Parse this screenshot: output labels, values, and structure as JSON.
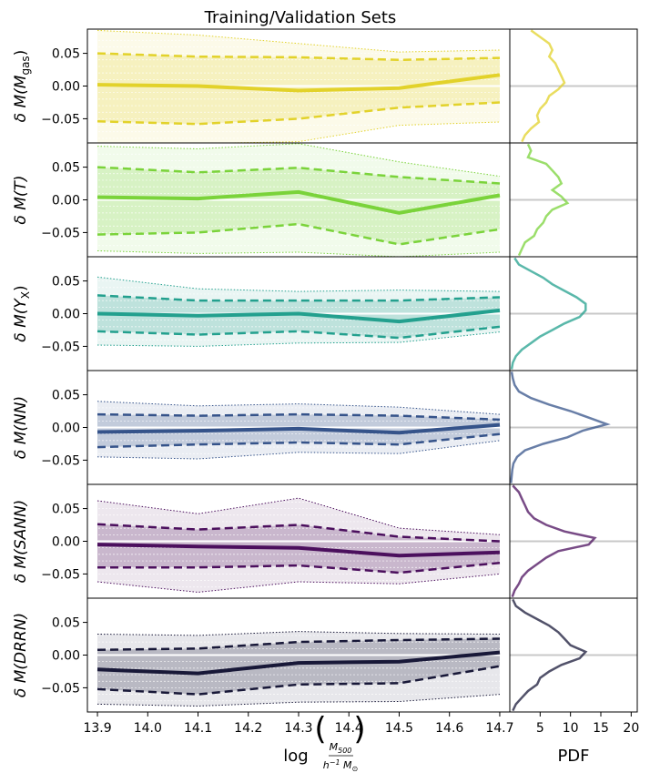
{
  "figure": {
    "title": "Training/Validation Sets",
    "pdf_xlabel": "PDF",
    "xlabel_prefix": "log",
    "xlabel_num": "M",
    "xlabel_num_sub": "500",
    "xlabel_den": "h",
    "xlabel_den_sup": "−1",
    "xlabel_den_m": " M",
    "xlabel_den_sub": "⊙"
  },
  "chart_data": {
    "type": "line",
    "x": [
      13.9,
      14.1,
      14.3,
      14.5,
      14.7
    ],
    "xlim": [
      13.88,
      14.72
    ],
    "ylim": [
      -0.087,
      0.087
    ],
    "x_ticks": [
      "13.9",
      "14.0",
      "14.1",
      "14.2",
      "14.3",
      "14.4",
      "14.5",
      "14.6",
      "14.7"
    ],
    "y_ticks": [
      "0.05",
      "0.00",
      "−0.05"
    ],
    "pdf_ticks": [
      "5",
      "10",
      "15",
      "20"
    ],
    "pdf_xlim": [
      0,
      21
    ],
    "panels": [
      {
        "ylabel": "δ M(M",
        "ylabel_sub": "gas",
        "ylabel_close": ")",
        "color": "#e2d22a",
        "median": [
          0.002,
          0.0,
          -0.007,
          -0.003,
          0.017
        ],
        "q16": [
          -0.054,
          -0.058,
          -0.05,
          -0.033,
          -0.025
        ],
        "q84": [
          0.05,
          0.045,
          0.044,
          0.04,
          0.043
        ],
        "q2": [
          -0.09,
          -0.088,
          -0.085,
          -0.06,
          -0.055
        ],
        "q98": [
          0.085,
          0.078,
          0.065,
          0.052,
          0.055
        ],
        "pdf_y": [
          0.085,
          0.075,
          0.065,
          0.055,
          0.045,
          0.035,
          0.025,
          0.015,
          0.005,
          -0.005,
          -0.015,
          -0.025,
          -0.035,
          -0.045,
          -0.055,
          -0.065,
          -0.075,
          -0.085
        ],
        "pdf": [
          3.5,
          5,
          6.5,
          7,
          6.5,
          7.5,
          8,
          8.5,
          9,
          8,
          6.5,
          6,
          5,
          4.5,
          4.8,
          3.5,
          2.5,
          2
        ]
      },
      {
        "ylabel": "δ M(T)",
        "ylabel_sub": "",
        "ylabel_close": "",
        "color": "#7ad33a",
        "median": [
          0.004,
          0.002,
          0.012,
          -0.02,
          0.007
        ],
        "q16": [
          -0.053,
          -0.05,
          -0.037,
          -0.068,
          -0.045
        ],
        "q84": [
          0.05,
          0.042,
          0.049,
          0.035,
          0.025
        ],
        "q2": [
          -0.078,
          -0.082,
          -0.08,
          -0.087,
          -0.08
        ],
        "q98": [
          0.082,
          0.078,
          0.086,
          0.058,
          0.036
        ],
        "pdf_y": [
          0.085,
          0.075,
          0.065,
          0.055,
          0.045,
          0.035,
          0.025,
          0.015,
          0.005,
          -0.005,
          -0.015,
          -0.025,
          -0.035,
          -0.045,
          -0.055,
          -0.065,
          -0.075,
          -0.085
        ],
        "pdf": [
          3,
          3.5,
          3,
          6,
          7,
          8,
          8.5,
          7,
          8.5,
          9.5,
          7,
          6,
          5.5,
          4.5,
          4,
          2.5,
          2,
          1.5
        ]
      },
      {
        "ylabel": "δ M(Y",
        "ylabel_sub": "X",
        "ylabel_close": ")",
        "color": "#23a08e",
        "median": [
          0.0,
          -0.003,
          0.0,
          -0.012,
          0.005
        ],
        "q16": [
          -0.027,
          -0.032,
          -0.027,
          -0.037,
          -0.02
        ],
        "q84": [
          0.028,
          0.02,
          0.02,
          0.02,
          0.025
        ],
        "q2": [
          -0.048,
          -0.05,
          -0.045,
          -0.044,
          -0.028
        ],
        "q98": [
          0.056,
          0.038,
          0.034,
          0.036,
          0.034
        ],
        "pdf_y": [
          0.085,
          0.075,
          0.065,
          0.055,
          0.045,
          0.035,
          0.025,
          0.015,
          0.005,
          -0.005,
          -0.015,
          -0.025,
          -0.035,
          -0.045,
          -0.055,
          -0.065,
          -0.075,
          -0.085
        ],
        "pdf": [
          0.8,
          1.5,
          3.5,
          5.5,
          7,
          9,
          11,
          12.5,
          12.5,
          11.5,
          9,
          7,
          5,
          3.5,
          2,
          1,
          0.5,
          0.3
        ]
      },
      {
        "ylabel": "δ M(NN)",
        "ylabel_sub": "",
        "ylabel_close": "",
        "color": "#35538a",
        "median": [
          -0.007,
          -0.005,
          -0.002,
          -0.008,
          0.004
        ],
        "q16": [
          -0.03,
          -0.026,
          -0.023,
          -0.026,
          -0.01
        ],
        "q84": [
          0.02,
          0.018,
          0.02,
          0.018,
          0.012
        ],
        "q2": [
          -0.045,
          -0.048,
          -0.038,
          -0.04,
          -0.02
        ],
        "q98": [
          0.04,
          0.033,
          0.036,
          0.031,
          0.02
        ],
        "pdf_y": [
          0.085,
          0.075,
          0.065,
          0.055,
          0.045,
          0.035,
          0.025,
          0.015,
          0.005,
          -0.005,
          -0.015,
          -0.025,
          -0.035,
          -0.045,
          -0.055,
          -0.065,
          -0.075,
          -0.085
        ],
        "pdf": [
          0.3,
          0.5,
          0.8,
          1.5,
          3.5,
          6.5,
          10,
          13,
          16,
          12,
          9.5,
          5.5,
          2.5,
          1.2,
          0.6,
          0.4,
          0.3,
          0.2
        ]
      },
      {
        "ylabel": "δ M(SANN)",
        "ylabel_sub": "",
        "ylabel_close": "",
        "color": "#4b0f5d",
        "median": [
          -0.005,
          -0.008,
          -0.01,
          -0.022,
          -0.017
        ],
        "q16": [
          -0.04,
          -0.04,
          -0.037,
          -0.048,
          -0.033
        ],
        "q84": [
          0.026,
          0.018,
          0.025,
          0.007,
          0.0
        ],
        "q2": [
          -0.062,
          -0.078,
          -0.062,
          -0.065,
          -0.05
        ],
        "q98": [
          0.062,
          0.042,
          0.066,
          0.02,
          0.01
        ],
        "pdf_y": [
          0.085,
          0.075,
          0.065,
          0.055,
          0.045,
          0.035,
          0.025,
          0.015,
          0.005,
          -0.005,
          -0.015,
          -0.025,
          -0.035,
          -0.045,
          -0.055,
          -0.065,
          -0.075,
          -0.085
        ],
        "pdf": [
          0.5,
          1.5,
          2,
          2.5,
          3,
          4,
          6,
          9,
          14,
          13,
          8,
          6,
          4.5,
          3,
          2,
          1.5,
          0.8,
          0.4
        ]
      },
      {
        "ylabel": "δ M(DRRN)",
        "ylabel_sub": "",
        "ylabel_close": "",
        "color": "#181838",
        "median": [
          -0.022,
          -0.028,
          -0.012,
          -0.01,
          0.004
        ],
        "q16": [
          -0.052,
          -0.06,
          -0.045,
          -0.043,
          -0.017
        ],
        "q84": [
          0.008,
          0.01,
          0.02,
          0.023,
          0.025
        ],
        "q2": [
          -0.075,
          -0.078,
          -0.072,
          -0.071,
          -0.06
        ],
        "q98": [
          0.032,
          0.03,
          0.036,
          0.033,
          0.032
        ],
        "pdf_y": [
          0.085,
          0.075,
          0.065,
          0.055,
          0.045,
          0.035,
          0.025,
          0.015,
          0.005,
          -0.005,
          -0.015,
          -0.025,
          -0.035,
          -0.045,
          -0.055,
          -0.065,
          -0.075,
          -0.085
        ],
        "pdf": [
          0.5,
          1,
          2.5,
          4.5,
          6.5,
          8,
          9,
          10,
          12.5,
          11.5,
          8.5,
          6.5,
          5,
          4.5,
          3,
          2,
          1,
          0.5
        ]
      }
    ]
  }
}
